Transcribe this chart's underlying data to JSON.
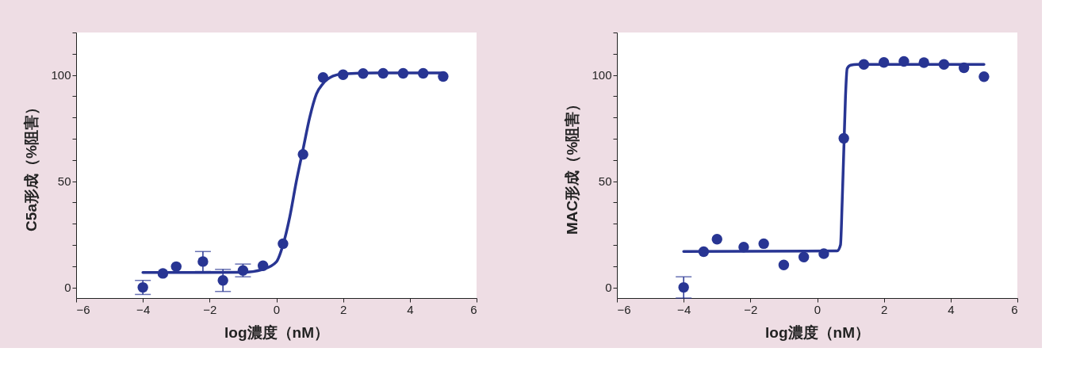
{
  "chart_data": [
    {
      "type": "scatter",
      "xlabel": "log濃度（nM）",
      "ylabel": "C5a形成（%阻害）",
      "grid": false,
      "xlim": [
        -6,
        6
      ],
      "xticks": [
        {
          "value": -6,
          "label": "−6"
        },
        {
          "value": -4,
          "label": "−4"
        },
        {
          "value": -2,
          "label": "−2"
        },
        0,
        2,
        4,
        6
      ],
      "ylim": [
        -5,
        120
      ],
      "yticks": [
        0,
        {
          "value": 10,
          "label": null
        },
        {
          "value": 20,
          "label": null
        },
        {
          "value": 30,
          "label": null
        },
        {
          "value": 40,
          "label": null
        },
        50,
        {
          "value": 60,
          "label": null
        },
        {
          "value": 70,
          "label": null
        },
        {
          "value": 80,
          "label": null
        },
        {
          "value": 90,
          "label": null
        },
        100,
        {
          "value": 110,
          "label": null
        },
        {
          "value": 120,
          "label": null
        }
      ],
      "series": [
        {
          "marker": "circle",
          "color": "#283593",
          "x": [
            -4,
            -3.4,
            -3,
            -2.2,
            -1.6,
            -1,
            -0.4,
            0.2,
            0.8,
            1.4,
            2,
            2.6,
            3.2,
            3.8,
            4.4,
            5
          ],
          "values": [
            0,
            6.6,
            9.8,
            12.2,
            3.3,
            8,
            10.2,
            20.6,
            62.6,
            98.8,
            100.1,
            100.7,
            100.8,
            100.8,
            100.8,
            99.3
          ],
          "errors": [
            3.3,
            null,
            null,
            4.7,
            5.2,
            3,
            null,
            null,
            null,
            null,
            null,
            null,
            null,
            null,
            null,
            null
          ]
        },
        {
          "type": "line",
          "color": "#283593",
          "x": [
            -4,
            -1,
            -0.4,
            0,
            0.2,
            0.4,
            0.6,
            0.8,
            1.0,
            1.2,
            1.4,
            1.7,
            2,
            3,
            5
          ],
          "values": [
            7,
            7.1,
            8.5,
            12,
            20,
            33,
            50,
            65,
            80,
            91,
            96,
            99.5,
            100.5,
            101,
            101
          ]
        }
      ]
    },
    {
      "type": "scatter",
      "xlabel": "log濃度（nM）",
      "ylabel": "MAC形成（%阻害）",
      "grid": false,
      "xlim": [
        -6,
        6
      ],
      "xticks": [
        {
          "value": -6,
          "label": "−6"
        },
        {
          "value": -4,
          "label": "−4"
        },
        {
          "value": -2,
          "label": "−2"
        },
        0,
        2,
        4,
        6
      ],
      "ylim": [
        -5,
        120
      ],
      "yticks": [
        0,
        {
          "value": 10,
          "label": null
        },
        {
          "value": 20,
          "label": null
        },
        {
          "value": 30,
          "label": null
        },
        {
          "value": 40,
          "label": null
        },
        50,
        {
          "value": 60,
          "label": null
        },
        {
          "value": 70,
          "label": null
        },
        {
          "value": 80,
          "label": null
        },
        {
          "value": 90,
          "label": null
        },
        100,
        {
          "value": 110,
          "label": null
        },
        {
          "value": 120,
          "label": null
        }
      ],
      "series": [
        {
          "marker": "circle",
          "color": "#283593",
          "x": [
            -4,
            -3.4,
            -3,
            -2.2,
            -1.6,
            -1,
            -0.4,
            0.2,
            0.8,
            1.4,
            2,
            2.6,
            3.2,
            3.8,
            4.4,
            5
          ],
          "values": [
            0,
            16.8,
            22.7,
            19,
            20.6,
            10.6,
            14.3,
            15.9,
            70.2,
            105,
            105.9,
            106.4,
            105.8,
            105,
            103.4,
            99.2
          ],
          "errors": [
            5,
            null,
            null,
            null,
            null,
            null,
            null,
            null,
            null,
            null,
            null,
            null,
            null,
            null,
            null,
            null
          ]
        },
        {
          "type": "line",
          "color": "#283593",
          "x": [
            -4,
            0.6,
            0.7,
            0.75,
            0.8,
            0.85,
            0.9,
            1.0,
            1.2,
            5
          ],
          "values": [
            16.9,
            17.2,
            20,
            40,
            65,
            90,
            103,
            104.6,
            105,
            105
          ]
        }
      ]
    }
  ]
}
